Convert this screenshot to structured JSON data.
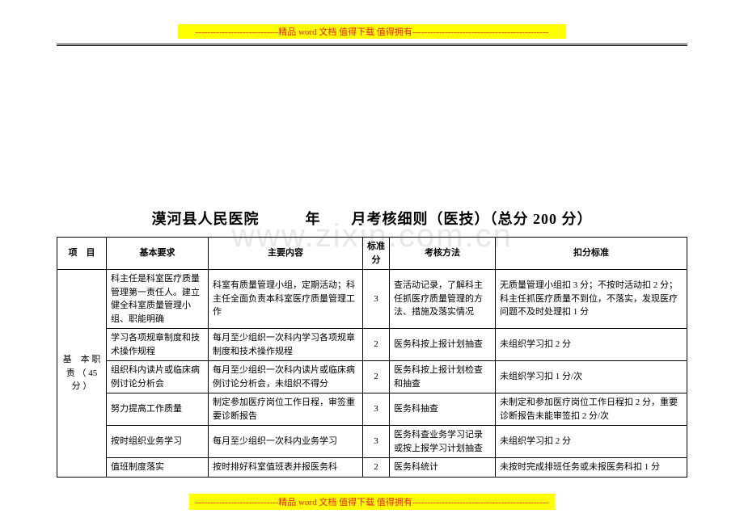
{
  "header_bar": "----------------------------精品 word 文档  值得下载  值得拥有----------------------------------------------",
  "footer_bar": "----------------------------精品 word 文档  值得下载  值得拥有----------------------------------------------",
  "watermark": "www.zixin.com.cn",
  "title": "漠河县人民医院　　　年　　月考核细则（医技）（总分 200 分）",
  "columns": {
    "c1": "项　目",
    "c2": "基本要求",
    "c3": "主要内容",
    "c4": "标准分",
    "c5": "考核方法",
    "c6": "扣分标准"
  },
  "section_label": "基　本 职　责 （ 45 分 ）",
  "rows": [
    {
      "req": "科主任是科室医疗质量管理第一责任人。建立健全科室质量管理小组、职能明确",
      "content": "科室有质量管理小组，定期活动；科主任全面负责本科室医疗质量管理工作",
      "score": "3",
      "method": "查活动记录，了解科主任抓医疗质量管理的方法、措施及落实情况",
      "deduct": "无质量管理小组扣 3 分；不按时活动扣 2 分；科主任抓医疗质量不到位，不落实，发现医疗问题不及时处理扣 1 分"
    },
    {
      "req": "学习各项规章制度和技术操作规程",
      "content": "每月至少组织一次科内学习各项规章制度和技术操作规程",
      "score": "2",
      "method": "医务科按上报计划抽查",
      "deduct": "未组织学习扣 2 分"
    },
    {
      "req": "组织科内读片或临床病例讨论分析会",
      "content": "每月至少组织一次科内读片或临床病例讨论分析会，未组织不得分",
      "score": "2",
      "method": "医务科按上报计划检查和抽查",
      "deduct": "未组织学习扣 1 分/次"
    },
    {
      "req": "努力提高工作质量",
      "content": "制定参加医疗岗位工作日程，审签重要诊断报告",
      "score": "3",
      "method": "医务科抽查",
      "deduct": "未制定和参加医疗岗位工作日程扣 2 分，重要诊断报告未能审签扣 2 分/次"
    },
    {
      "req": "按时组织业务学习",
      "content": "每月至少组织一次科内业务学习",
      "score": "3",
      "method": "医务科查业务学习记录或按上报学习计划抽查",
      "deduct": "未组织学习扣 2 分"
    },
    {
      "req": "值班制度落实",
      "content": "按时排好科室值班表并报医务科",
      "score": "2",
      "method": "医务科统计",
      "deduct": "未按时完成排班任务或未报医务科扣 1 分"
    }
  ]
}
